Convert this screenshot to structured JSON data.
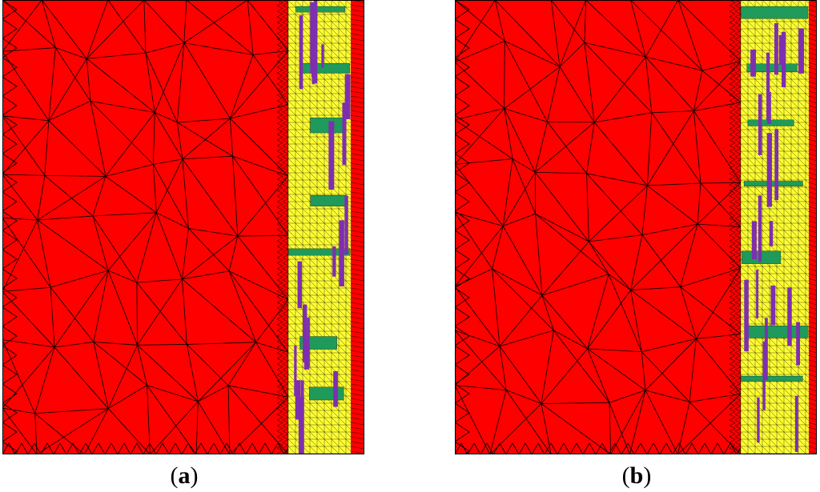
{
  "figure": {
    "panels": [
      {
        "id": "a",
        "label": "a"
      },
      {
        "id": "b",
        "label": "b"
      }
    ],
    "colors": {
      "background_region": "#ff0000",
      "material_region": "#ffff33",
      "inclusion_green": "#1f9a5a",
      "inclusion_purple": "#7e2fb0",
      "mesh_lines": "#000000"
    }
  }
}
